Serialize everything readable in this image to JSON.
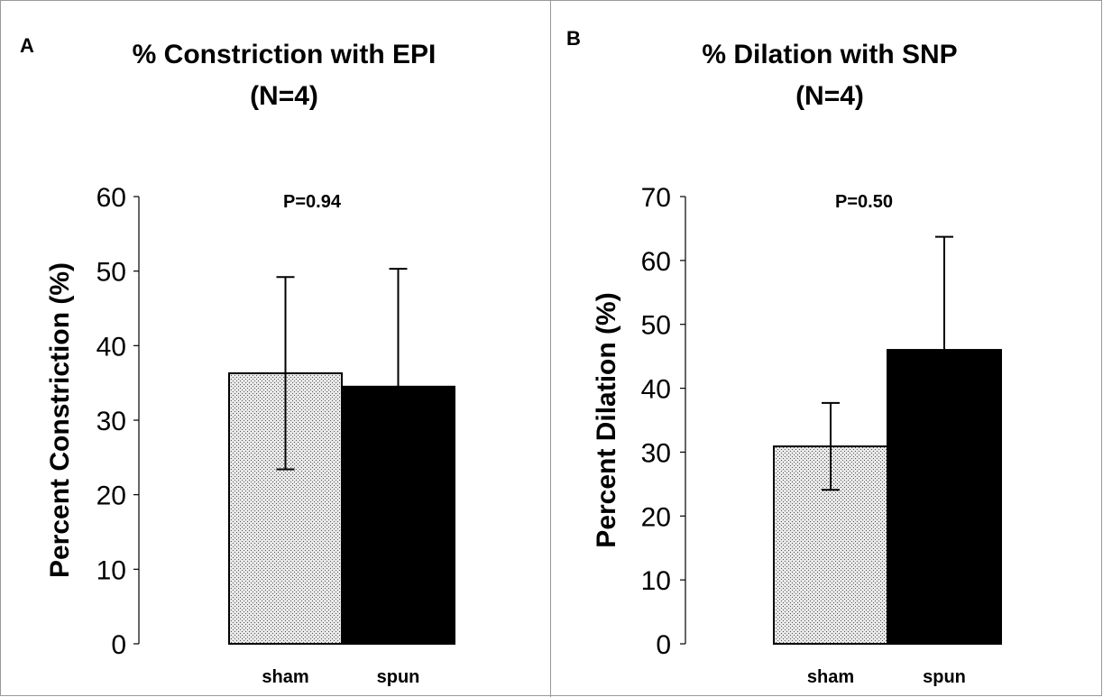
{
  "chart_data": [
    {
      "type": "bar",
      "panel": "A",
      "title": "% Constriction with EPI",
      "subtitle": "(N=4)",
      "ylabel": "Percent Constriction (%)",
      "xlabel": "",
      "ylim": [
        0,
        60
      ],
      "yticks": [
        0,
        10,
        20,
        30,
        40,
        50,
        60
      ],
      "categories": [
        "sham",
        "spun"
      ],
      "values": [
        36.3,
        34.5
      ],
      "errors": [
        12.9,
        15.8
      ],
      "fills": [
        "stipple",
        "#000000"
      ],
      "annotation": "P=0.94",
      "grid": false
    },
    {
      "type": "bar",
      "panel": "B",
      "title": "% Dilation with SNP",
      "subtitle": "(N=4)",
      "ylabel": "Percent Dilation (%)",
      "xlabel": "",
      "ylim": [
        0,
        70
      ],
      "yticks": [
        0,
        10,
        20,
        30,
        40,
        50,
        60,
        70
      ],
      "categories": [
        "sham",
        "spun"
      ],
      "values": [
        30.9,
        46.0
      ],
      "errors": [
        6.8,
        17.7
      ],
      "fills": [
        "stipple",
        "#000000"
      ],
      "annotation": "P=0.50",
      "grid": false
    }
  ]
}
